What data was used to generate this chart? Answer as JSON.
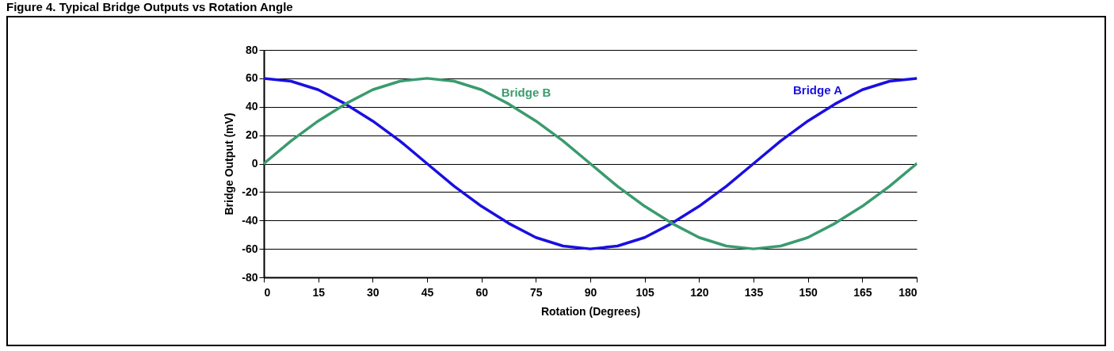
{
  "chart_data": {
    "type": "line",
    "title": "Figure 4. Typical Bridge Outputs vs Rotation Angle",
    "xlabel": "Rotation (Degrees)",
    "ylabel": "Bridge Output (mV)",
    "x": [
      0,
      7.5,
      15,
      22.5,
      30,
      37.5,
      45,
      52.5,
      60,
      67.5,
      75,
      82.5,
      90,
      97.5,
      105,
      112.5,
      120,
      127.5,
      135,
      142.5,
      150,
      157.5,
      165,
      172.5,
      180
    ],
    "series": [
      {
        "name": "Bridge A",
        "color": "#1a0fe0",
        "values": [
          60,
          58,
          52,
          42,
          30,
          16,
          0,
          -16,
          -30,
          -42,
          -52,
          -58,
          -60,
          -58,
          -52,
          -42,
          -30,
          -16,
          0,
          16,
          30,
          42,
          52,
          58,
          60
        ]
      },
      {
        "name": "Bridge B",
        "color": "#3a9b6e",
        "values": [
          0,
          16,
          30,
          42,
          52,
          58,
          60,
          58,
          52,
          42,
          30,
          16,
          0,
          -16,
          -30,
          -42,
          -52,
          -58,
          -60,
          -58,
          -52,
          -42,
          -30,
          -16,
          0
        ]
      }
    ],
    "xlim": [
      0,
      180
    ],
    "xticks": [
      0,
      15,
      30,
      45,
      60,
      75,
      90,
      105,
      120,
      135,
      150,
      165,
      180
    ],
    "ylim": [
      -80,
      80
    ],
    "yticks": [
      -80,
      -60,
      -40,
      -20,
      0,
      20,
      40,
      60,
      80
    ],
    "grid": "y",
    "legend": false,
    "marker": "none",
    "line_style": "solid"
  }
}
